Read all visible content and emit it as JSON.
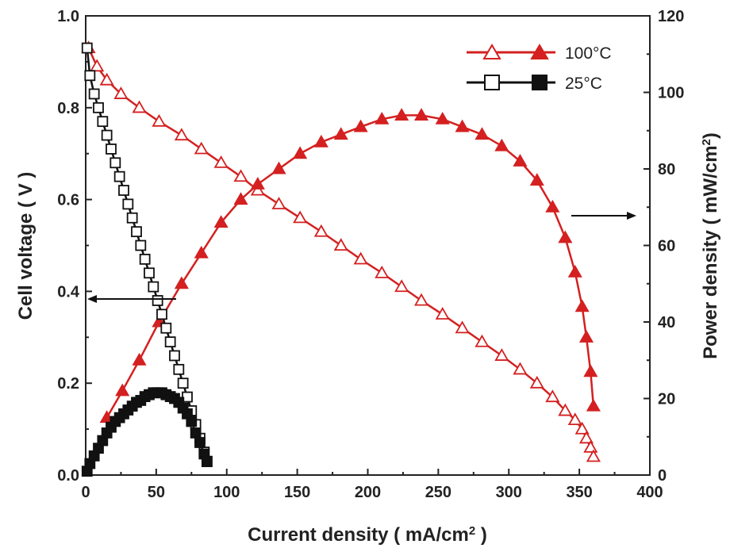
{
  "chart_data": {
    "type": "line",
    "xlabel": "Current density ( mA/cm",
    "xlabel_sup": "2",
    "xlabel_end": " )",
    "ylabel_left": "Cell voltage ( V )",
    "ylabel_right": "Power density ( mW/cm",
    "ylabel_right_sup": "2",
    "ylabel_right_end": ")",
    "xlim": [
      0,
      400
    ],
    "ylim_left": [
      0,
      1.0
    ],
    "ylim_right": [
      0,
      120
    ],
    "x_ticks": [
      "0",
      "50",
      "100",
      "150",
      "200",
      "250",
      "300",
      "350",
      "400"
    ],
    "y_left_ticks": [
      "0.0",
      "0.2",
      "0.4",
      "0.6",
      "0.8",
      "1.0"
    ],
    "y_right_ticks": [
      "0",
      "20",
      "40",
      "60",
      "80",
      "100",
      "120"
    ],
    "grid": false,
    "legend_position": "top-right",
    "legend": [
      {
        "label": "100°C",
        "color": "#d42020"
      },
      {
        "label": "25°C",
        "color": "#111111"
      }
    ],
    "annotations": [
      "arrow-left-pointing-to-voltage-axis",
      "arrow-right-pointing-to-power-axis"
    ],
    "series": [
      {
        "name": "100°C",
        "quantity": "voltage",
        "axis": "left",
        "color": "#d42020",
        "marker": "triangle-open",
        "x": [
          2,
          8,
          15,
          25,
          38,
          52,
          68,
          82,
          96,
          110,
          122,
          137,
          152,
          167,
          181,
          195,
          210,
          224,
          238,
          253,
          267,
          281,
          295,
          308,
          320,
          331,
          340,
          347,
          352,
          355,
          358,
          360
        ],
        "y": [
          0.93,
          0.89,
          0.86,
          0.83,
          0.8,
          0.77,
          0.74,
          0.71,
          0.68,
          0.65,
          0.62,
          0.59,
          0.56,
          0.53,
          0.5,
          0.47,
          0.44,
          0.41,
          0.38,
          0.35,
          0.32,
          0.29,
          0.26,
          0.23,
          0.2,
          0.17,
          0.14,
          0.12,
          0.1,
          0.08,
          0.06,
          0.04
        ]
      },
      {
        "name": "100°C",
        "quantity": "power",
        "axis": "right",
        "color": "#d42020",
        "marker": "triangle-filled",
        "x": [
          15,
          26,
          38,
          52,
          68,
          82,
          96,
          110,
          122,
          137,
          152,
          167,
          181,
          195,
          210,
          224,
          238,
          253,
          267,
          281,
          295,
          308,
          320,
          331,
          340,
          347,
          352,
          355,
          358,
          360
        ],
        "y": [
          15,
          22,
          30,
          40,
          50,
          58,
          66,
          72,
          76,
          80,
          84,
          87,
          89,
          91,
          93,
          94,
          94,
          93,
          91,
          89,
          86,
          82,
          77,
          70,
          62,
          53,
          44,
          36,
          27,
          18
        ]
      },
      {
        "name": "25°C",
        "quantity": "voltage",
        "axis": "left",
        "color": "#111111",
        "marker": "square-open",
        "x": [
          1,
          3,
          6,
          9,
          12,
          15,
          18,
          21,
          24,
          27,
          30,
          33,
          36,
          39,
          42,
          45,
          48,
          51,
          54,
          57,
          60,
          63,
          66,
          69,
          72,
          75,
          78,
          81,
          84,
          86
        ],
        "y": [
          0.93,
          0.87,
          0.83,
          0.8,
          0.77,
          0.74,
          0.71,
          0.68,
          0.65,
          0.62,
          0.59,
          0.56,
          0.53,
          0.5,
          0.47,
          0.44,
          0.41,
          0.38,
          0.35,
          0.32,
          0.29,
          0.26,
          0.23,
          0.2,
          0.17,
          0.14,
          0.11,
          0.08,
          0.05,
          0.03
        ]
      },
      {
        "name": "25°C",
        "quantity": "power",
        "axis": "right",
        "color": "#111111",
        "marker": "square-filled",
        "x": [
          1,
          3,
          6,
          9,
          12,
          15,
          18,
          21,
          24,
          27,
          30,
          33,
          36,
          39,
          42,
          45,
          48,
          51,
          54,
          57,
          60,
          63,
          66,
          69,
          72,
          75,
          78,
          81,
          84,
          86
        ],
        "y": [
          1,
          3,
          5,
          7,
          9,
          11,
          12.5,
          14,
          15,
          16,
          17,
          18,
          19,
          19.5,
          20.5,
          21,
          21.5,
          21.5,
          21.5,
          21,
          20.5,
          20,
          19,
          17.5,
          16,
          14,
          11,
          8.5,
          5.5,
          3.5
        ]
      }
    ]
  }
}
